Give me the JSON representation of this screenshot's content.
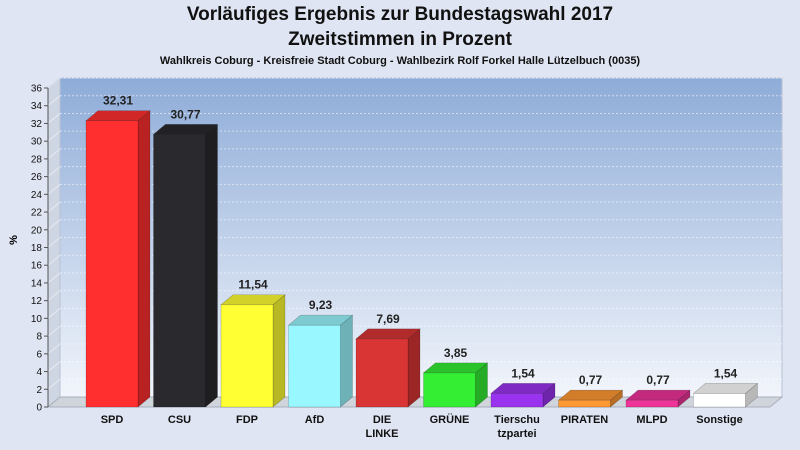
{
  "chart_data": {
    "type": "bar",
    "title": "Vorläufiges Ergebnis zur Bundestagswahl 2017",
    "title2": "Zweitstimmen in Prozent",
    "subtitle": "Wahlkreis Coburg - Kreisfreie Stadt Coburg - Wahlbezirk Rolf Forkel Halle Lützelbuch (0035)",
    "ylabel": "%",
    "ylim": [
      0,
      36
    ],
    "yticks": [
      0,
      2,
      4,
      6,
      8,
      10,
      12,
      14,
      16,
      18,
      20,
      22,
      24,
      26,
      28,
      30,
      32,
      34,
      36
    ],
    "grid": true,
    "categories": [
      "SPD",
      "CSU",
      "FDP",
      "AfD",
      "DIE LINKE",
      "GRÜNE",
      "Tierschutzpartei",
      "PIRATEN",
      "MLPD",
      "Sonstige"
    ],
    "category_lines": [
      [
        "SPD"
      ],
      [
        "CSU"
      ],
      [
        "FDP"
      ],
      [
        "AfD"
      ],
      [
        "DIE",
        "LINKE"
      ],
      [
        "GRÜNE"
      ],
      [
        "Tierschu",
        "tzpartei"
      ],
      [
        "PIRATEN"
      ],
      [
        "MLPD"
      ],
      [
        "Sonstige"
      ]
    ],
    "values": [
      32.31,
      30.77,
      11.54,
      9.23,
      7.69,
      3.85,
      1.54,
      0.77,
      0.77,
      1.54
    ],
    "value_labels": [
      "32,31",
      "30,77",
      "11,54",
      "9,23",
      "7,69",
      "3,85",
      "1,54",
      "0,77",
      "0,77",
      "1,54"
    ],
    "colors": [
      "#ff2f2f",
      "#2a2a2e",
      "#ffff33",
      "#99f7ff",
      "#d93535",
      "#33ee33",
      "#9a33ee",
      "#ff9933",
      "#ee3399",
      "#ffffff"
    ]
  }
}
